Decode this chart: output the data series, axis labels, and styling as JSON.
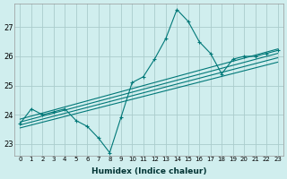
{
  "title": "",
  "xlabel": "Humidex (Indice chaleur)",
  "ylabel": "",
  "bg_color": "#d0eeee",
  "grid_color": "#aacccc",
  "line_color": "#007878",
  "marker": "+",
  "marker_size": 3,
  "ylim": [
    22.6,
    27.8
  ],
  "xlim": [
    -0.5,
    23.5
  ],
  "xticks": [
    0,
    1,
    2,
    3,
    4,
    5,
    6,
    7,
    8,
    9,
    10,
    11,
    12,
    13,
    14,
    15,
    16,
    17,
    18,
    19,
    20,
    21,
    22,
    23
  ],
  "yticks": [
    23,
    24,
    25,
    26,
    27
  ],
  "data_line": [
    23.7,
    24.2,
    24.0,
    24.1,
    24.2,
    23.8,
    23.6,
    23.2,
    22.7,
    23.9,
    25.1,
    25.3,
    25.9,
    26.6,
    27.6,
    27.2,
    26.5,
    26.1,
    25.4,
    25.9,
    26.0,
    26.0,
    26.1,
    26.2
  ],
  "trend_lines": [
    {
      "x0": 0,
      "y0": 23.85,
      "x1": 23,
      "y1": 26.25
    },
    {
      "x0": 0,
      "y0": 23.75,
      "x1": 23,
      "y1": 26.1
    },
    {
      "x0": 0,
      "y0": 23.65,
      "x1": 23,
      "y1": 25.95
    },
    {
      "x0": 0,
      "y0": 23.55,
      "x1": 23,
      "y1": 25.8
    }
  ]
}
